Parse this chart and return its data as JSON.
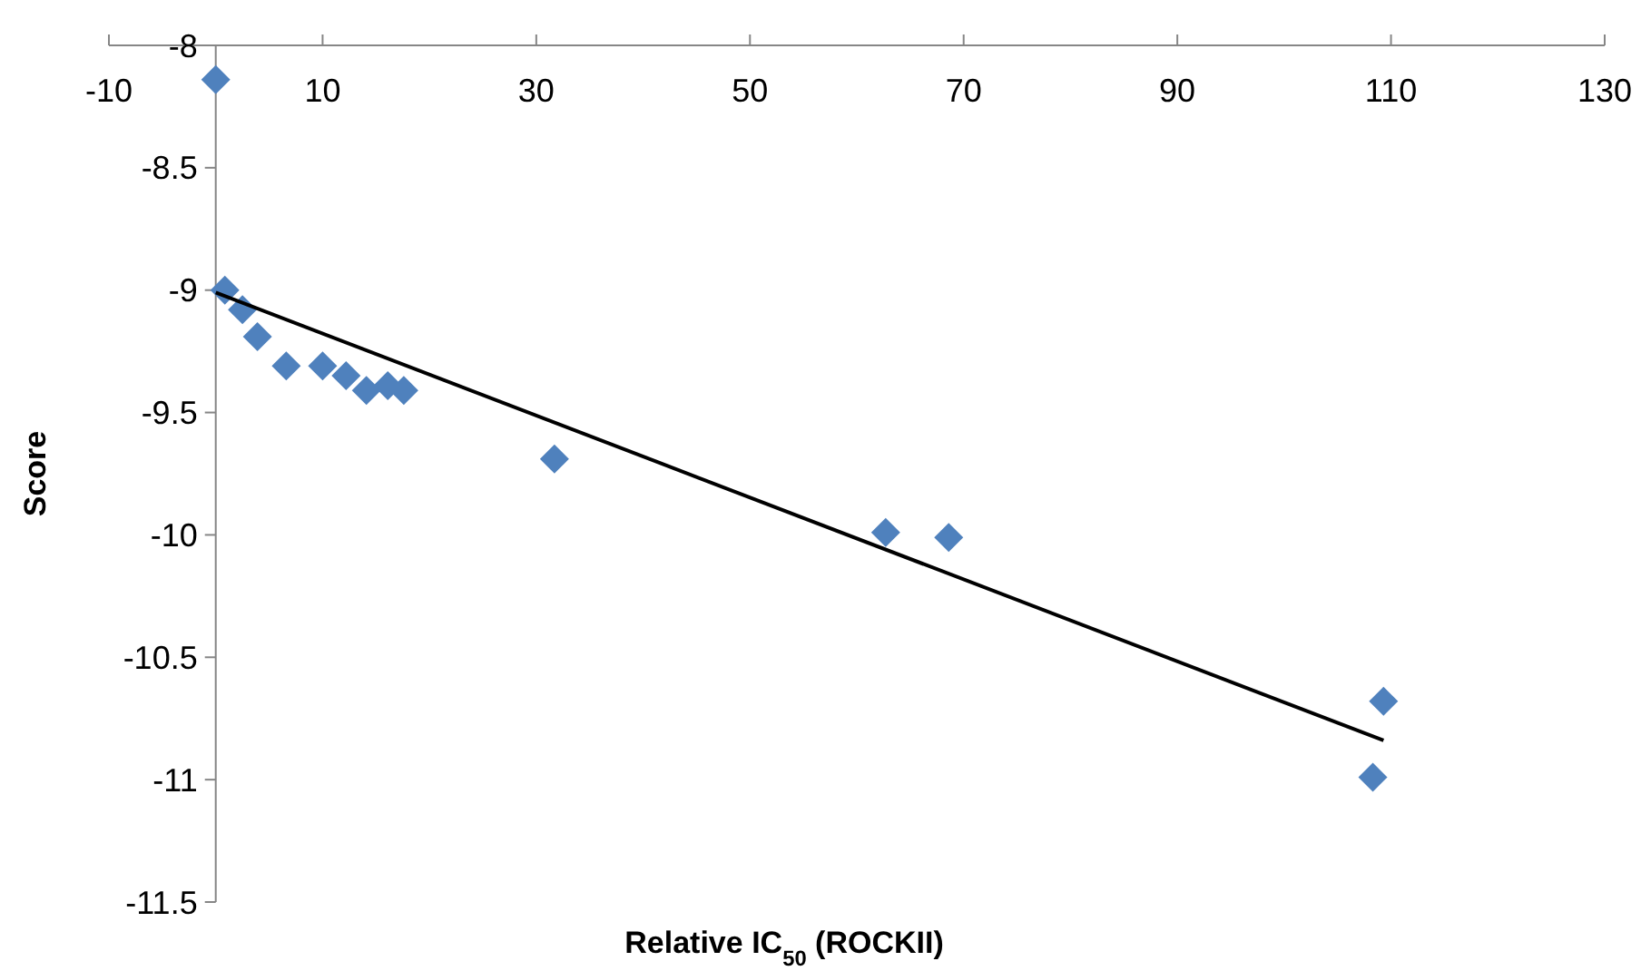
{
  "chart_data": {
    "type": "scatter",
    "xlabel": "Relative IC$_{50}$ (ROCKII)",
    "ylabel": "Score",
    "xlim": [
      -10,
      130
    ],
    "xticks": [
      -10,
      10,
      30,
      50,
      70,
      90,
      110,
      130
    ],
    "ylim": [
      -11.5,
      -8
    ],
    "yticks": [
      -11.5,
      -11,
      -10.5,
      -10,
      -9.5,
      -9,
      -8.5,
      -8
    ],
    "grid": false,
    "marker": "diamond",
    "series": [
      {
        "color": "#4f81bd",
        "x": [
          0,
          0.85,
          2.5,
          3.9,
          6.6,
          10,
          12.2,
          14.1,
          16.1,
          17.6,
          31.7,
          62.7,
          68.6,
          108.3,
          109.3
        ],
        "values": [
          -8.14,
          -9.0,
          -9.08,
          -9.19,
          -9.31,
          -9.31,
          -9.35,
          -9.41,
          -9.39,
          -9.41,
          -9.69,
          -9.99,
          -10.01,
          -10.99,
          -10.68
        ]
      },
      {
        "type": "line",
        "color": "#000000",
        "x": [
          0,
          109.3
        ],
        "values": [
          -9.01,
          -10.84
        ],
        "marker": "none"
      }
    ]
  }
}
